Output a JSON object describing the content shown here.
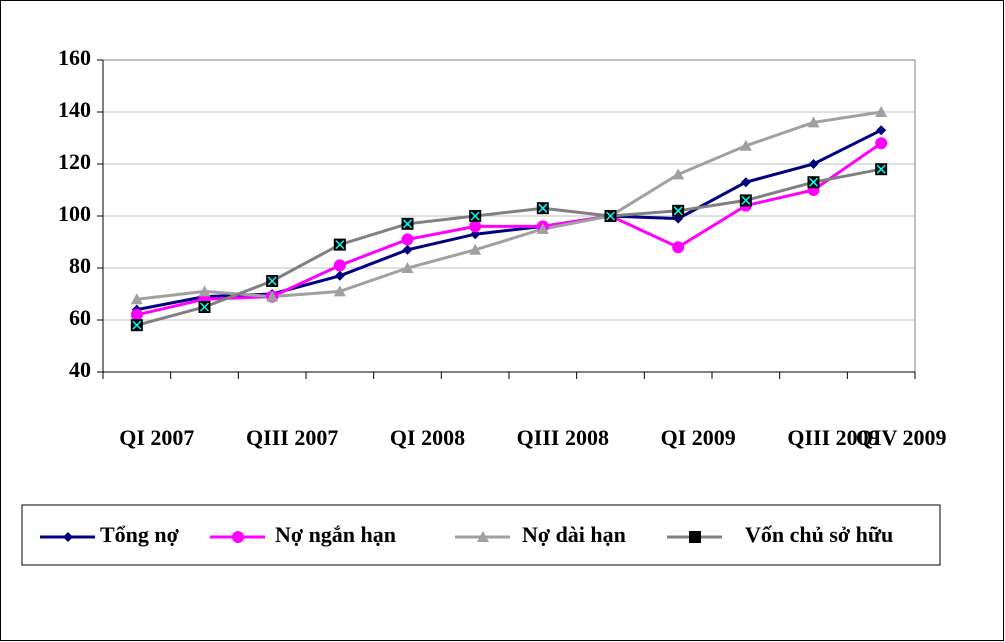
{
  "chart_data": {
    "type": "line",
    "categories": [
      "QI 2007",
      null,
      "QIII 2007",
      null,
      "QI 2008",
      null,
      "QIII 2008",
      null,
      "QI 2009",
      null,
      "QIII 2009",
      "QIV 2009"
    ],
    "series": [
      {
        "name": "Tổng nợ",
        "color": "#000080",
        "marker": "diamond",
        "marker_color": "#000080",
        "values": [
          64,
          69,
          70,
          77,
          87,
          93,
          96,
          100,
          99,
          113,
          120,
          133
        ]
      },
      {
        "name": "Nợ ngắn hạn",
        "color": "#ff00ff",
        "marker": "circle",
        "marker_color": "#ff00ff",
        "values": [
          62,
          68,
          69,
          81,
          91,
          96,
          96,
          100,
          88,
          104,
          110,
          128
        ]
      },
      {
        "name": "Nợ dài hạn",
        "color": "#a0a0a0",
        "marker": "triangle",
        "marker_color": "#a0a0a0",
        "values": [
          68,
          71,
          69,
          71,
          80,
          87,
          95,
          100,
          116,
          127,
          136,
          140
        ]
      },
      {
        "name": "Vốn chủ sở hữu",
        "color": "#808080",
        "marker": "square",
        "marker_color": "#000000",
        "values": [
          58,
          65,
          75,
          89,
          97,
          100,
          103,
          100,
          102,
          106,
          113,
          118
        ]
      }
    ],
    "ylim": [
      40,
      160
    ],
    "yticks": [
      40,
      60,
      80,
      100,
      120,
      140,
      160
    ],
    "grid": true
  }
}
